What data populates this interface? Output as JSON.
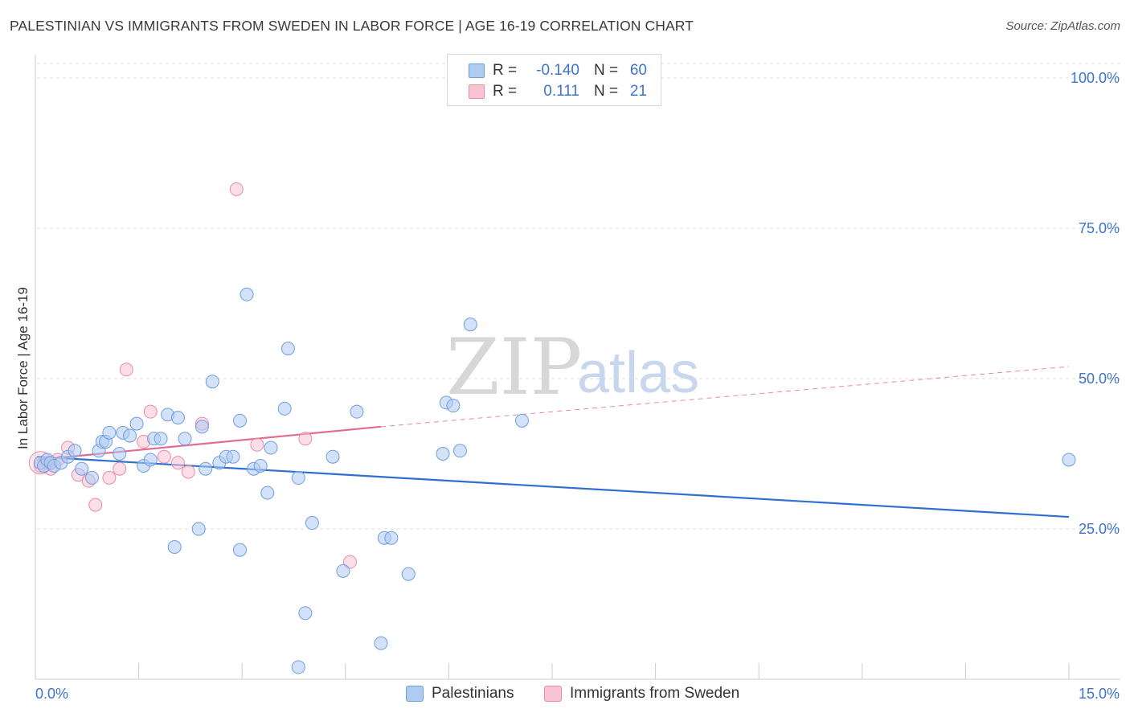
{
  "header": {
    "title": "PALESTINIAN VS IMMIGRANTS FROM SWEDEN IN LABOR FORCE | AGE 16-19 CORRELATION CHART",
    "source": "Source: ZipAtlas.com"
  },
  "watermark": {
    "zip": "ZIP",
    "atlas": "atlas"
  },
  "legend": {
    "rows": [
      {
        "r_label": "R =",
        "r_value": "-0.140",
        "n_label": "N =",
        "n_value": "60"
      },
      {
        "r_label": "R =",
        "r_value": "0.111",
        "n_label": "N =",
        "n_value": "21"
      }
    ]
  },
  "bottom_legend": {
    "items": [
      {
        "label": "Palestinians"
      },
      {
        "label": "Immigrants from Sweden"
      }
    ]
  },
  "chart_data": {
    "type": "scatter",
    "title": "PALESTINIAN VS IMMIGRANTS FROM SWEDEN IN LABOR FORCE | AGE 16-19 CORRELATION CHART",
    "xlabel": "",
    "ylabel": "In Labor Force | Age 16-19",
    "xlim": [
      0,
      15
    ],
    "ylim": [
      0,
      100
    ],
    "x_ticks": [
      "0.0%",
      "15.0%"
    ],
    "y_ticks": [
      {
        "value": 25,
        "label": "25.0%"
      },
      {
        "value": 50,
        "label": "50.0%"
      },
      {
        "value": 75,
        "label": "75.0%"
      },
      {
        "value": 100,
        "label": "100.0%"
      }
    ],
    "grid": true,
    "legend_position": "top-center",
    "colors": {
      "palestinians_fill": "#aecbf2",
      "palestinians_stroke": "#6f9ede",
      "palestinians_line": "#2f6fcf",
      "sweden_fill": "#f8c3d3",
      "sweden_stroke": "#e88aa8",
      "sweden_line": "#e26b93",
      "tick_text": "#3d74c9"
    },
    "series": [
      {
        "name": "Palestinians",
        "r": -0.14,
        "n": 60,
        "trend": {
          "x0": 0.0,
          "y0": 37.0,
          "x1": 15.0,
          "y1": 27.0
        },
        "points": [
          [
            0.05,
            36.0
          ],
          [
            0.1,
            35.5
          ],
          [
            0.15,
            36.5
          ],
          [
            0.2,
            36.0
          ],
          [
            0.25,
            35.5
          ],
          [
            0.35,
            36.0
          ],
          [
            0.45,
            37.0
          ],
          [
            0.55,
            38.0
          ],
          [
            0.65,
            35.0
          ],
          [
            0.8,
            33.5
          ],
          [
            0.9,
            38.0
          ],
          [
            0.95,
            39.5
          ],
          [
            1.0,
            39.5
          ],
          [
            1.05,
            41.0
          ],
          [
            1.2,
            37.5
          ],
          [
            1.25,
            41.0
          ],
          [
            1.35,
            40.5
          ],
          [
            1.45,
            42.5
          ],
          [
            1.55,
            35.5
          ],
          [
            1.65,
            36.5
          ],
          [
            1.7,
            40.0
          ],
          [
            1.8,
            40.0
          ],
          [
            1.9,
            44.0
          ],
          [
            2.0,
            22.0
          ],
          [
            2.05,
            43.5
          ],
          [
            2.15,
            40.0
          ],
          [
            2.35,
            25.0
          ],
          [
            2.4,
            42.0
          ],
          [
            2.45,
            35.0
          ],
          [
            2.55,
            49.5
          ],
          [
            2.65,
            36.0
          ],
          [
            2.75,
            37.0
          ],
          [
            2.85,
            37.0
          ],
          [
            2.95,
            21.5
          ],
          [
            2.95,
            43.0
          ],
          [
            3.05,
            64.0
          ],
          [
            3.15,
            35.0
          ],
          [
            3.25,
            35.5
          ],
          [
            3.35,
            31.0
          ],
          [
            3.4,
            38.5
          ],
          [
            3.6,
            45.0
          ],
          [
            3.65,
            55.0
          ],
          [
            3.8,
            33.5
          ],
          [
            3.8,
            2.0
          ],
          [
            3.9,
            11.0
          ],
          [
            4.0,
            26.0
          ],
          [
            4.3,
            37.0
          ],
          [
            4.45,
            18.0
          ],
          [
            4.65,
            44.5
          ],
          [
            5.0,
            6.0
          ],
          [
            5.05,
            23.5
          ],
          [
            5.15,
            23.5
          ],
          [
            5.4,
            17.5
          ],
          [
            5.9,
            37.5
          ],
          [
            5.95,
            46.0
          ],
          [
            6.05,
            45.5
          ],
          [
            6.15,
            38.0
          ],
          [
            6.3,
            59.0
          ],
          [
            7.05,
            43.0
          ],
          [
            15.0,
            36.5
          ]
        ]
      },
      {
        "name": "Immigrants from Sweden",
        "r": 0.111,
        "n": 21,
        "trend": {
          "x0": 0.0,
          "y0": 36.5,
          "x1": 5.0,
          "y1": 42.0,
          "dashed_to_x": 15.0,
          "dashed_to_y": 52.0
        },
        "points": [
          [
            0.05,
            35.5
          ],
          [
            0.15,
            36.0
          ],
          [
            0.2,
            35.0
          ],
          [
            0.3,
            36.5
          ],
          [
            0.45,
            38.5
          ],
          [
            0.6,
            34.0
          ],
          [
            0.75,
            33.0
          ],
          [
            0.85,
            29.0
          ],
          [
            1.05,
            33.5
          ],
          [
            1.2,
            35.0
          ],
          [
            1.3,
            51.5
          ],
          [
            1.55,
            39.5
          ],
          [
            1.65,
            44.5
          ],
          [
            1.85,
            37.0
          ],
          [
            2.05,
            36.0
          ],
          [
            2.2,
            34.5
          ],
          [
            2.4,
            42.5
          ],
          [
            2.9,
            81.5
          ],
          [
            3.2,
            39.0
          ],
          [
            3.9,
            40.0
          ],
          [
            4.55,
            19.5
          ]
        ]
      }
    ]
  }
}
